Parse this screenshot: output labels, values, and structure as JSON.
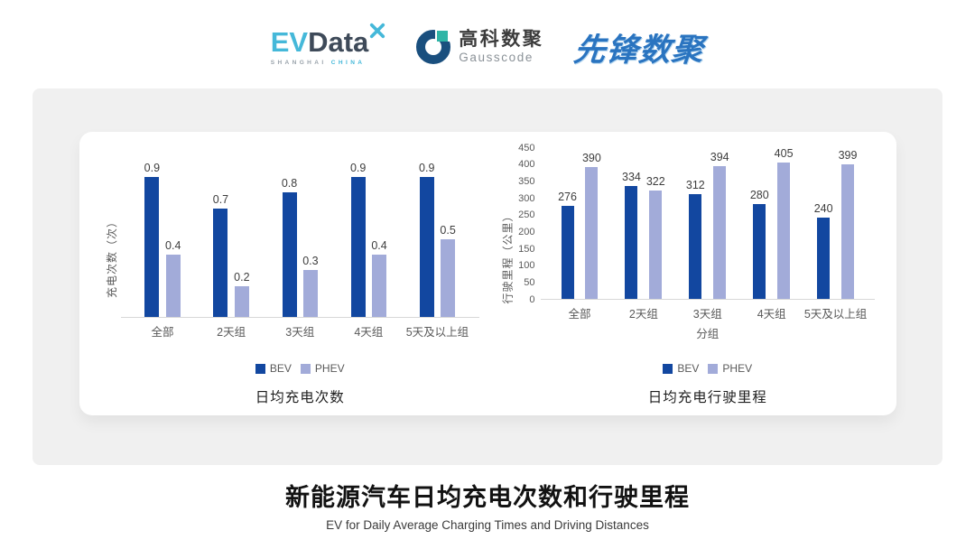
{
  "header": {
    "evdata": {
      "ev": "EV",
      "data": "Data",
      "sub_left": "SHANGHAI",
      "sub_right": "CHINA"
    },
    "gausscode": {
      "cn": "高科数聚",
      "en": "Gausscode"
    },
    "xianfeng": "先锋数聚"
  },
  "chart_data": [
    {
      "type": "bar",
      "title": "日均充电次数",
      "ylabel": "充电次数（次）",
      "xlabel": "",
      "categories": [
        "全部",
        "2天组",
        "3天组",
        "4天组",
        "5天及以上组"
      ],
      "series": [
        {
          "name": "BEV",
          "values": [
            0.9,
            0.7,
            0.8,
            0.9,
            0.9
          ]
        },
        {
          "name": "PHEV",
          "values": [
            0.4,
            0.2,
            0.3,
            0.4,
            0.5
          ]
        }
      ],
      "series_colors": {
        "BEV": "#1247a0",
        "PHEV": "#a2abd9"
      },
      "ylim": [
        0,
        1.0
      ],
      "yticks": null,
      "grid": false,
      "legend_position": "bottom"
    },
    {
      "type": "bar",
      "title": "日均充电行驶里程",
      "ylabel": "行驶里程（公里）",
      "xlabel": "分组",
      "categories": [
        "全部",
        "2天组",
        "3天组",
        "4天组",
        "5天及以上组"
      ],
      "series": [
        {
          "name": "BEV",
          "values": [
            276,
            334,
            312,
            280,
            240
          ]
        },
        {
          "name": "PHEV",
          "values": [
            390,
            322,
            394,
            405,
            399
          ]
        }
      ],
      "series_colors": {
        "BEV": "#1247a0",
        "PHEV": "#a2abd9"
      },
      "ylim": [
        0,
        450
      ],
      "yticks": [
        0,
        50,
        100,
        150,
        200,
        250,
        300,
        350,
        400,
        450
      ],
      "grid": false,
      "legend_position": "bottom"
    }
  ],
  "footer": {
    "title": "新能源汽车日均充电次数和行驶里程",
    "subtitle": "EV for Daily Average Charging Times and Driving Distances"
  }
}
